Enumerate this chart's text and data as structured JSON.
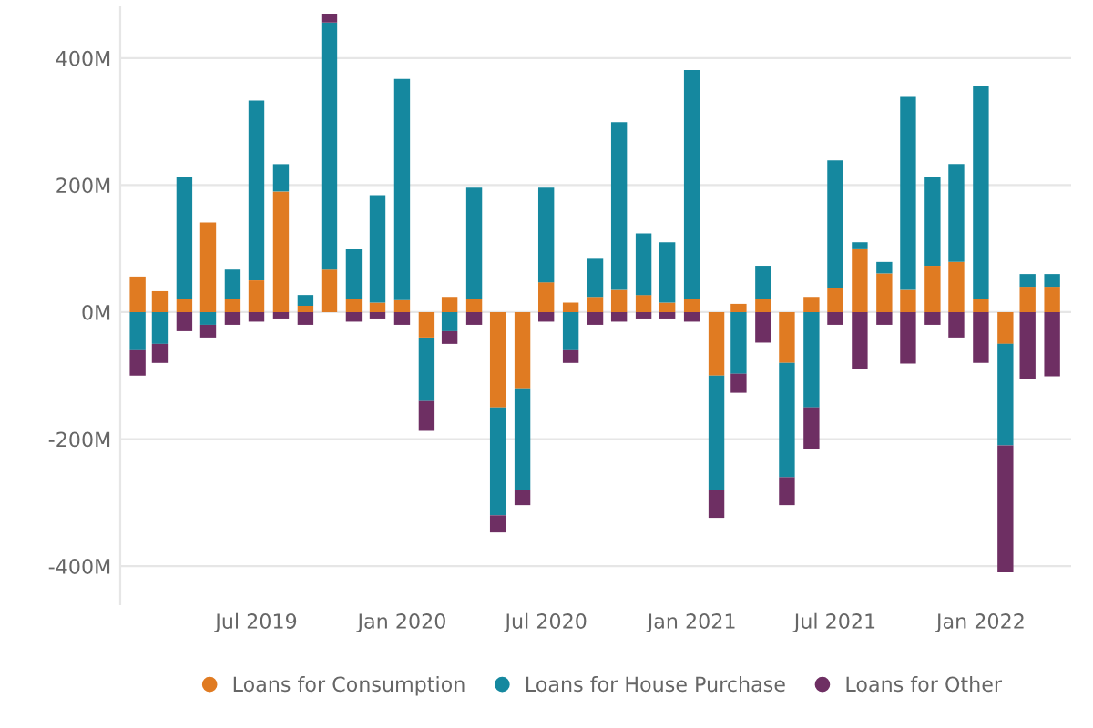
{
  "chart_data": {
    "type": "bar",
    "stacked": true,
    "x": [
      "2019-02",
      "2019-03",
      "2019-04",
      "2019-05",
      "2019-06",
      "2019-07",
      "2019-08",
      "2019-09",
      "2019-10",
      "2019-11",
      "2019-12",
      "2020-01",
      "2020-02",
      "2020-03",
      "2020-04",
      "2020-05",
      "2020-06",
      "2020-07",
      "2020-08",
      "2020-09",
      "2020-10",
      "2020-11",
      "2020-12",
      "2021-01",
      "2021-02",
      "2021-03",
      "2021-04",
      "2021-05",
      "2021-06",
      "2021-07",
      "2021-08",
      "2021-09",
      "2021-10",
      "2021-11",
      "2021-12",
      "2022-01",
      "2022-02",
      "2022-03",
      "2022-04"
    ],
    "series": [
      {
        "name": "Loans for Consumption",
        "color": "#e07b22",
        "values": [
          56,
          33,
          20,
          141,
          20,
          50,
          190,
          10,
          67,
          20,
          15,
          19,
          -40,
          24,
          20,
          -150,
          -120,
          47,
          15,
          24,
          35,
          27,
          15,
          20,
          -100,
          13,
          20,
          -80,
          24,
          38,
          99,
          61,
          35,
          73,
          79,
          20,
          -50,
          40,
          40
        ]
      },
      {
        "name": "Loans for House Purchase",
        "color": "#15889f",
        "values": [
          -60,
          -50,
          193,
          -20,
          47,
          283,
          43,
          17,
          389,
          79,
          169,
          348,
          -100,
          -30,
          176,
          -170,
          -160,
          149,
          -60,
          60,
          264,
          97,
          95,
          361,
          -180,
          -97,
          53,
          -180,
          -150,
          201,
          11,
          18,
          304,
          140,
          154,
          336,
          -160,
          20,
          20
        ]
      },
      {
        "name": "Loans for Other",
        "color": "#6e2f63",
        "values": [
          -40,
          -30,
          -30,
          -20,
          -20,
          -15,
          -10,
          -20,
          14,
          -15,
          -10,
          -20,
          -47,
          -20,
          -20,
          -27,
          -24,
          -15,
          -20,
          -20,
          -15,
          -10,
          -10,
          -15,
          -44,
          -30,
          -48,
          -44,
          -65,
          -20,
          -90,
          -20,
          -81,
          -20,
          -40,
          -80,
          -200,
          -105,
          -101
        ]
      }
    ],
    "xlim": [
      "2019-01-10",
      "2022-04-25"
    ],
    "xticks": [
      {
        "value": "2019-07-01",
        "label": "Jul 2019"
      },
      {
        "value": "2020-01-01",
        "label": "Jan 2020"
      },
      {
        "value": "2020-07-01",
        "label": "Jul 2020"
      },
      {
        "value": "2021-01-01",
        "label": "Jan 2021"
      },
      {
        "value": "2021-07-01",
        "label": "Jul 2021"
      },
      {
        "value": "2022-01-01",
        "label": "Jan 2022"
      }
    ],
    "ylim": [
      -460,
      480
    ],
    "yticks": [
      {
        "value": -400,
        "label": "-400M"
      },
      {
        "value": -200,
        "label": "-200M"
      },
      {
        "value": 0,
        "label": "0M"
      },
      {
        "value": 200,
        "label": "200M"
      },
      {
        "value": 400,
        "label": "400M"
      }
    ],
    "grid": "y",
    "legend": "bottom"
  }
}
